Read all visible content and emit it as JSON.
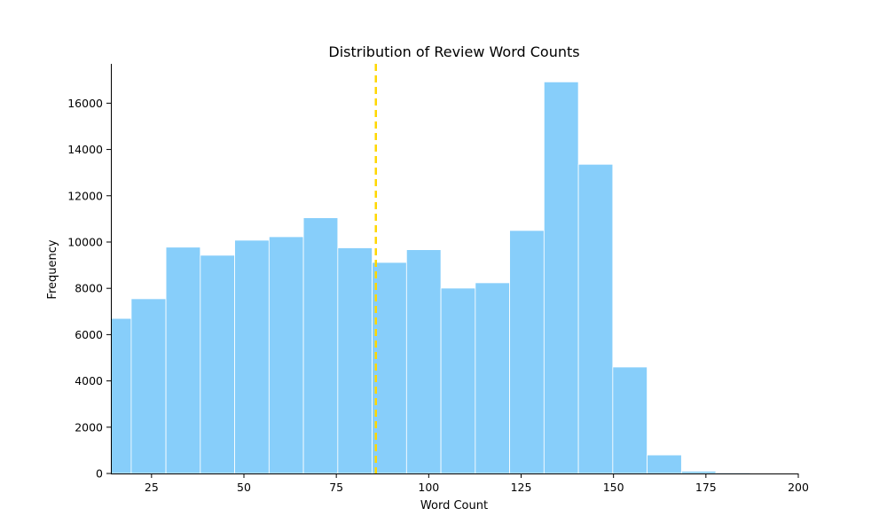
{
  "chart_data": {
    "type": "bar",
    "title": "Distribution of Review Word Counts",
    "xlabel": "Word Count",
    "ylabel": "Frequency",
    "xlim": [
      14,
      200
    ],
    "ylim": [
      0,
      17700
    ],
    "x_ticks": [
      25,
      50,
      75,
      100,
      125,
      150,
      175,
      200
    ],
    "y_ticks": [
      0,
      2000,
      4000,
      6000,
      8000,
      10000,
      12000,
      14000,
      16000
    ],
    "bins": [
      {
        "start": 14.0,
        "end": 19.5,
        "value": 6700
      },
      {
        "start": 19.5,
        "end": 28.9,
        "value": 7550
      },
      {
        "start": 28.9,
        "end": 38.2,
        "value": 9780
      },
      {
        "start": 38.2,
        "end": 47.5,
        "value": 9430
      },
      {
        "start": 47.5,
        "end": 56.8,
        "value": 10080
      },
      {
        "start": 56.8,
        "end": 66.1,
        "value": 10230
      },
      {
        "start": 66.1,
        "end": 75.4,
        "value": 11050
      },
      {
        "start": 75.4,
        "end": 84.7,
        "value": 9750
      },
      {
        "start": 84.7,
        "end": 94.0,
        "value": 9120
      },
      {
        "start": 94.0,
        "end": 103.3,
        "value": 9670
      },
      {
        "start": 103.3,
        "end": 112.6,
        "value": 8010
      },
      {
        "start": 112.6,
        "end": 121.9,
        "value": 8240
      },
      {
        "start": 121.9,
        "end": 131.2,
        "value": 10500
      },
      {
        "start": 131.2,
        "end": 140.5,
        "value": 16920
      },
      {
        "start": 140.5,
        "end": 149.8,
        "value": 13360
      },
      {
        "start": 149.8,
        "end": 159.1,
        "value": 4600
      },
      {
        "start": 159.1,
        "end": 168.4,
        "value": 800
      },
      {
        "start": 168.4,
        "end": 177.7,
        "value": 100
      },
      {
        "start": 177.7,
        "end": 187.0,
        "value": 40
      },
      {
        "start": 187.0,
        "end": 196.3,
        "value": 20
      }
    ],
    "mean_line": {
      "x": 85.7,
      "style": "dashed"
    },
    "bar_color": "#87CEFA",
    "bar_edge_color": "#ffffff",
    "mean_line_color": "#FFD700",
    "grid": false,
    "legend": "none"
  }
}
